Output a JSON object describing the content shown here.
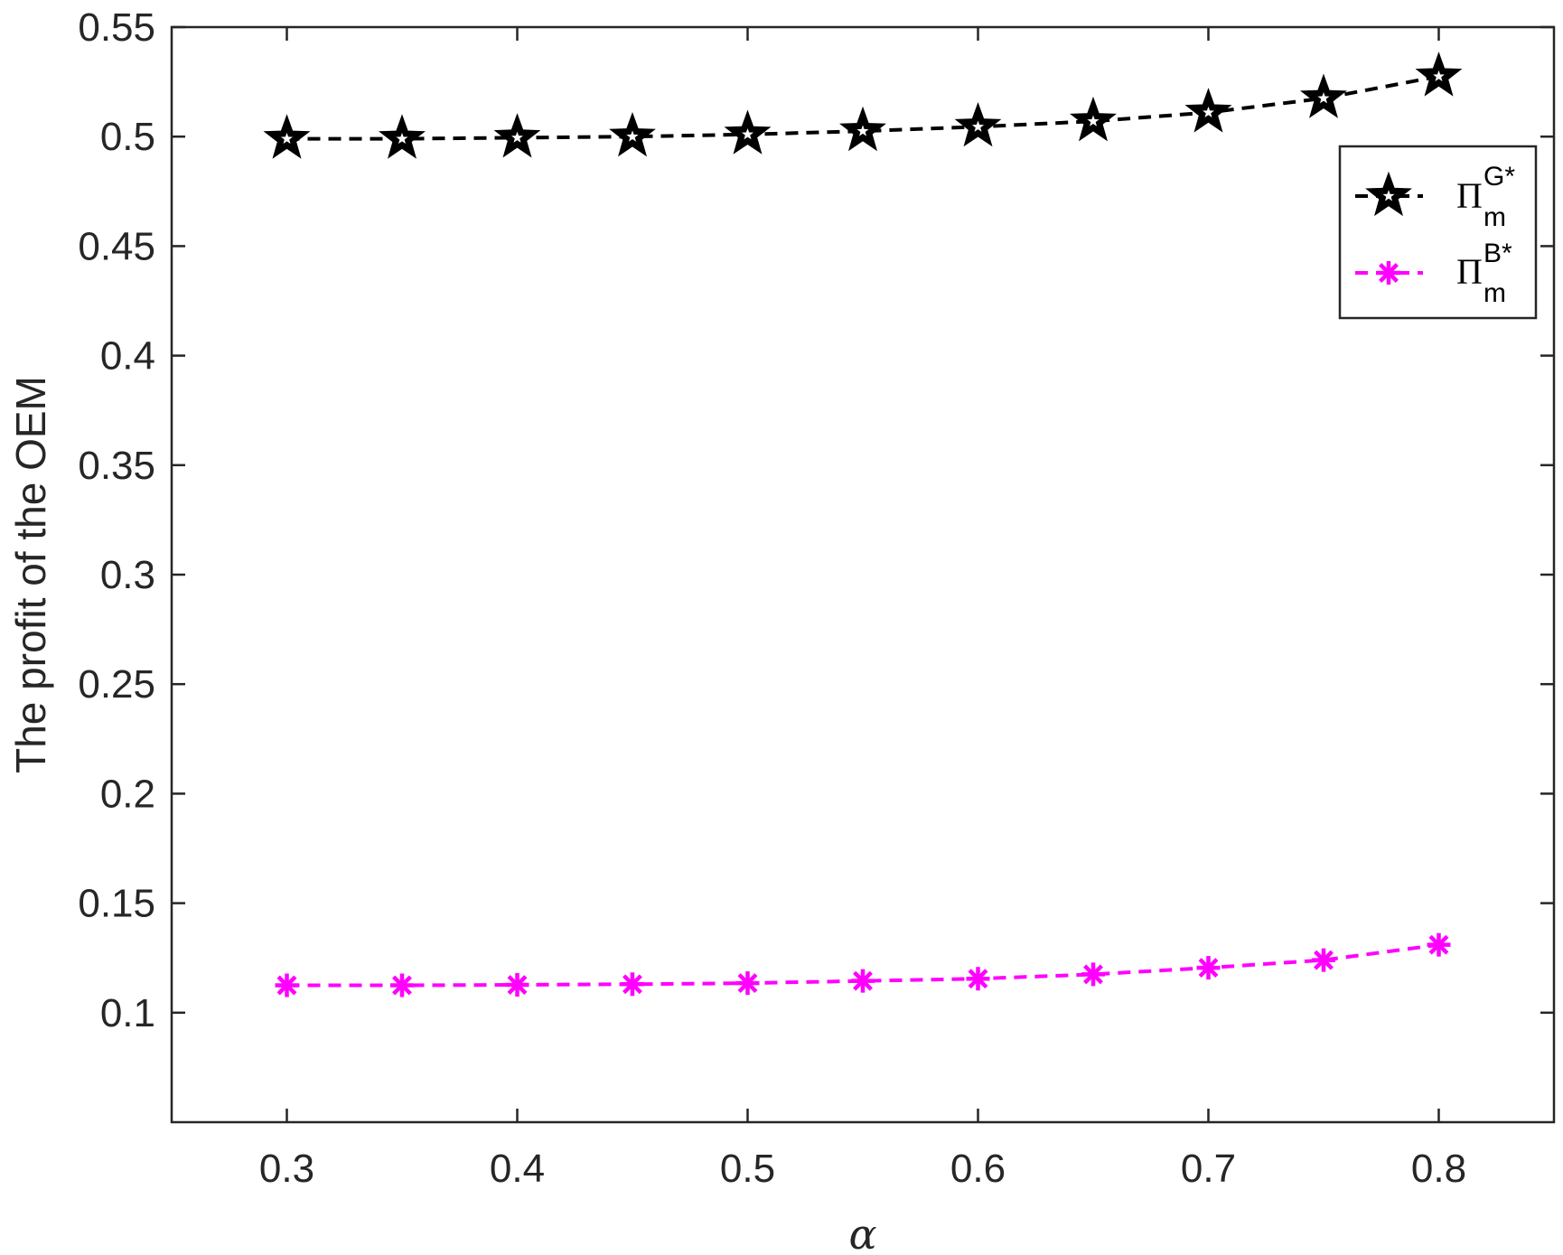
{
  "chart_data": {
    "type": "line",
    "title": "",
    "xlabel": "α",
    "ylabel": "The profit of the OEM",
    "xlim": [
      0.25,
      0.85
    ],
    "ylim": [
      0.05,
      0.55
    ],
    "xticks": [
      0.3,
      0.4,
      0.5,
      0.6,
      0.7,
      0.8
    ],
    "xtick_labels": [
      "0.3",
      "0.4",
      "0.5",
      "0.6",
      "0.7",
      "0.8"
    ],
    "yticks": [
      0.1,
      0.15,
      0.2,
      0.25,
      0.3,
      0.35,
      0.4,
      0.45,
      0.5,
      0.55
    ],
    "ytick_labels": [
      "0.1",
      "0.15",
      "0.2",
      "0.25",
      "0.3",
      "0.35",
      "0.4",
      "0.45",
      "0.5",
      "0.55"
    ],
    "grid": false,
    "legend_position": "top-right",
    "x": [
      0.3,
      0.35,
      0.4,
      0.45,
      0.5,
      0.55,
      0.6,
      0.65,
      0.7,
      0.75,
      0.8
    ],
    "series": [
      {
        "name": "Π_m^{G*}",
        "legend_base": "Π",
        "legend_sub": "m",
        "legend_sup": "G*",
        "color": "#000000",
        "marker": "pentagram",
        "line_style": "dashed",
        "values": [
          0.499,
          0.499,
          0.4995,
          0.5,
          0.501,
          0.5025,
          0.5045,
          0.507,
          0.511,
          0.5175,
          0.5275
        ]
      },
      {
        "name": "Π_m^{B*}",
        "legend_base": "Π",
        "legend_sub": "m",
        "legend_sup": "B*",
        "color": "#ff00ff",
        "marker": "asterisk",
        "line_style": "dashed",
        "values": [
          0.1125,
          0.1125,
          0.1127,
          0.113,
          0.1135,
          0.1145,
          0.1155,
          0.1175,
          0.1205,
          0.124,
          0.131
        ]
      }
    ]
  }
}
